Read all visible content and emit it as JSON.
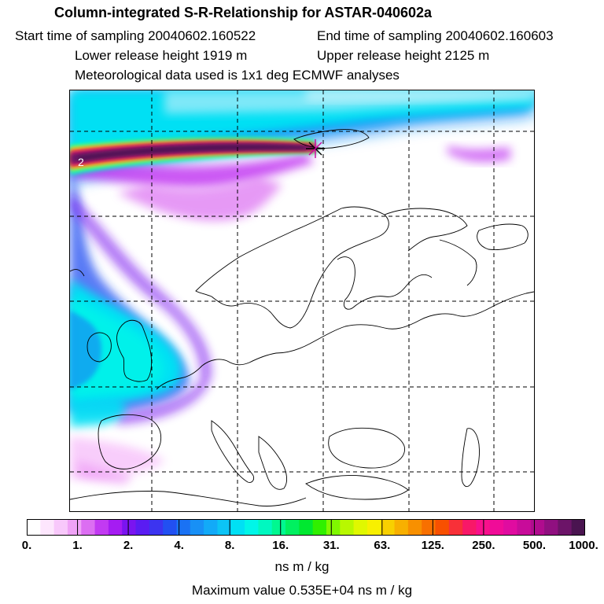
{
  "header": {
    "title": "Column-integrated S-R-Relationship for ASTAR-040602a",
    "start_time": "Start time of sampling 20040602.160522",
    "end_time": "End time of sampling 20040602.160603",
    "lower_release": "Lower release height 1919 m",
    "upper_release": "Upper release height 2125 m",
    "met_data": "Meteorological data used is 1x1 deg ECMWF analyses"
  },
  "map": {
    "contour_label": "2"
  },
  "colorbar": {
    "ticks": [
      "0.",
      "1.",
      "2.",
      "4.",
      "8.",
      "16.",
      "31.",
      "63.",
      "125.",
      "250.",
      "500.",
      "1000."
    ],
    "colors": [
      "#ffffff",
      "#fde6fd",
      "#f8c8fb",
      "#efa2f6",
      "#dc6ef2",
      "#c23af2",
      "#a51cf2",
      "#7a14f0",
      "#5a1cf2",
      "#3c34f0",
      "#2250f2",
      "#1a72f4",
      "#1890f6",
      "#12aaf8",
      "#0cc4f6",
      "#00e0f4",
      "#00f6e8",
      "#00f8c0",
      "#00f890",
      "#00f060",
      "#00e830",
      "#30f000",
      "#80f800",
      "#b8f800",
      "#e0f800",
      "#f8f000",
      "#f8d000",
      "#f8b000",
      "#f89000",
      "#f87000",
      "#f85000",
      "#f83038",
      "#f81868",
      "#f8108c",
      "#f00c98",
      "#e00ca0",
      "#c80c9a",
      "#b00c8e",
      "#901080",
      "#6c1468",
      "#4a1450"
    ],
    "units": "ns m / kg"
  },
  "footer": {
    "max_value": "Maximum value  0.535E+04 ns m / kg"
  }
}
